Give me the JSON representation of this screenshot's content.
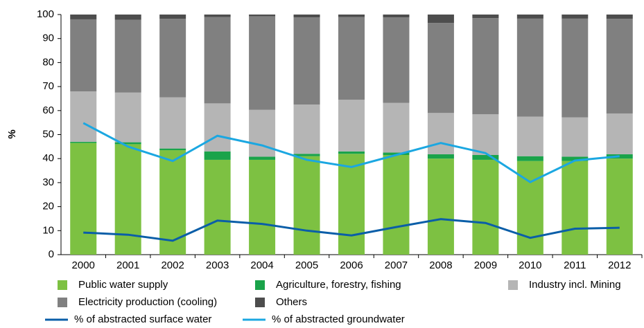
{
  "chart_data": {
    "type": "bar",
    "stacked": true,
    "y_label": "%",
    "categories": [
      "2000",
      "2001",
      "2002",
      "2003",
      "2004",
      "2005",
      "2006",
      "2007",
      "2008",
      "2009",
      "2010",
      "2011",
      "2012"
    ],
    "ylim": [
      0,
      100
    ],
    "yticks": [
      0,
      10,
      20,
      30,
      40,
      50,
      60,
      70,
      80,
      90,
      100
    ],
    "series": [
      {
        "name": "Public water supply",
        "type": "bar",
        "color": "#7dc142",
        "values": [
          46.5,
          46,
          43.5,
          39.5,
          39.5,
          41,
          42,
          41.5,
          40,
          39.5,
          39,
          39,
          40
        ]
      },
      {
        "name": "Agriculture, forestry, fishing",
        "type": "bar",
        "color": "#1aa34a",
        "values": [
          0.5,
          0.8,
          0.7,
          3.5,
          1.3,
          1,
          1,
          1,
          1.8,
          2,
          2,
          1.8,
          1.8
        ]
      },
      {
        "name": "Industry incl. Mining",
        "type": "bar",
        "color": "#b5b5b5",
        "values": [
          21,
          20.7,
          21.3,
          20,
          19.5,
          20.5,
          21.5,
          20.7,
          17.2,
          17,
          16.5,
          16.4,
          17
        ]
      },
      {
        "name": "Electricity production (cooling)",
        "type": "bar",
        "color": "#808080",
        "values": [
          30,
          30.3,
          32.7,
          36,
          39,
          36.3,
          34.5,
          35.6,
          37.5,
          40,
          40.8,
          41.1,
          39.4
        ]
      },
      {
        "name": "Others",
        "type": "bar",
        "color": "#4d4d4d",
        "values": [
          2,
          2.2,
          1.8,
          1,
          0.7,
          1.2,
          1,
          1.2,
          3.5,
          1.5,
          1.7,
          1.7,
          1.8
        ]
      },
      {
        "name": "% of abstracted surface water",
        "type": "line",
        "color": "#0a5ea8",
        "values": [
          9.2,
          8.3,
          5.8,
          14.2,
          12.8,
          10,
          8,
          11.5,
          14.8,
          13.2,
          7,
          10.8,
          11.2
        ]
      },
      {
        "name": "% of abstracted groundwater",
        "type": "line",
        "color": "#1ba7e1",
        "values": [
          54.8,
          45,
          39,
          49.5,
          45.5,
          39.5,
          36.5,
          41.5,
          46.5,
          42.3,
          30.2,
          39.2,
          41
        ]
      }
    ]
  }
}
